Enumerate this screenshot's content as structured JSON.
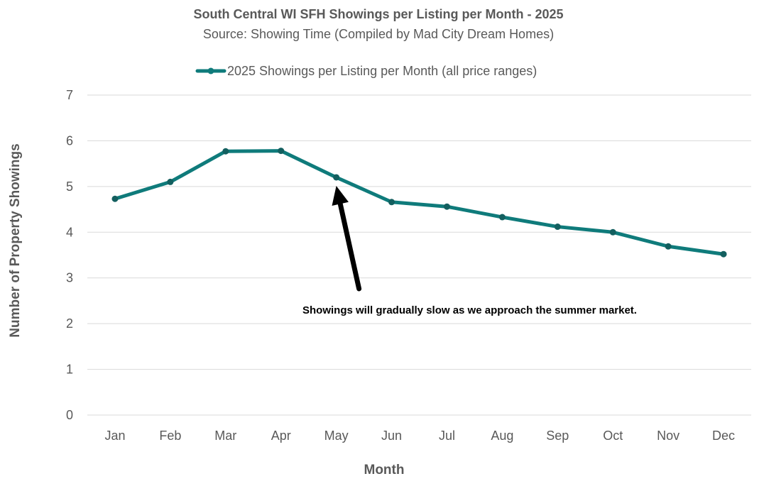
{
  "chart_data": {
    "type": "line",
    "title": "South Central WI SFH Showings per Listing per Month - 2025",
    "subtitle": "Source: Showing Time (Compiled by Mad City Dream Homes)",
    "xlabel": "Month",
    "ylabel": "Number of Property Showings",
    "ylim": [
      0,
      7
    ],
    "yticks": [
      "0",
      "1",
      "2",
      "3",
      "4",
      "5",
      "6",
      "7"
    ],
    "grid": true,
    "legend_position": "top",
    "categories": [
      "Jan",
      "Feb",
      "Mar",
      "Apr",
      "May",
      "Jun",
      "Jul",
      "Aug",
      "Sep",
      "Oct",
      "Nov",
      "Dec"
    ],
    "series": [
      {
        "name": "2025 Showings per Listing per Month (all price ranges)",
        "color": "#0f7b7b",
        "values": [
          4.73,
          5.1,
          5.77,
          5.78,
          5.2,
          4.66,
          4.56,
          4.33,
          4.12,
          4.0,
          3.69,
          3.52
        ]
      }
    ],
    "annotation": {
      "text": "Showings will gradually slow as we approach the summer market.",
      "arrow_target_category": "May",
      "arrow_color": "#000000"
    }
  }
}
